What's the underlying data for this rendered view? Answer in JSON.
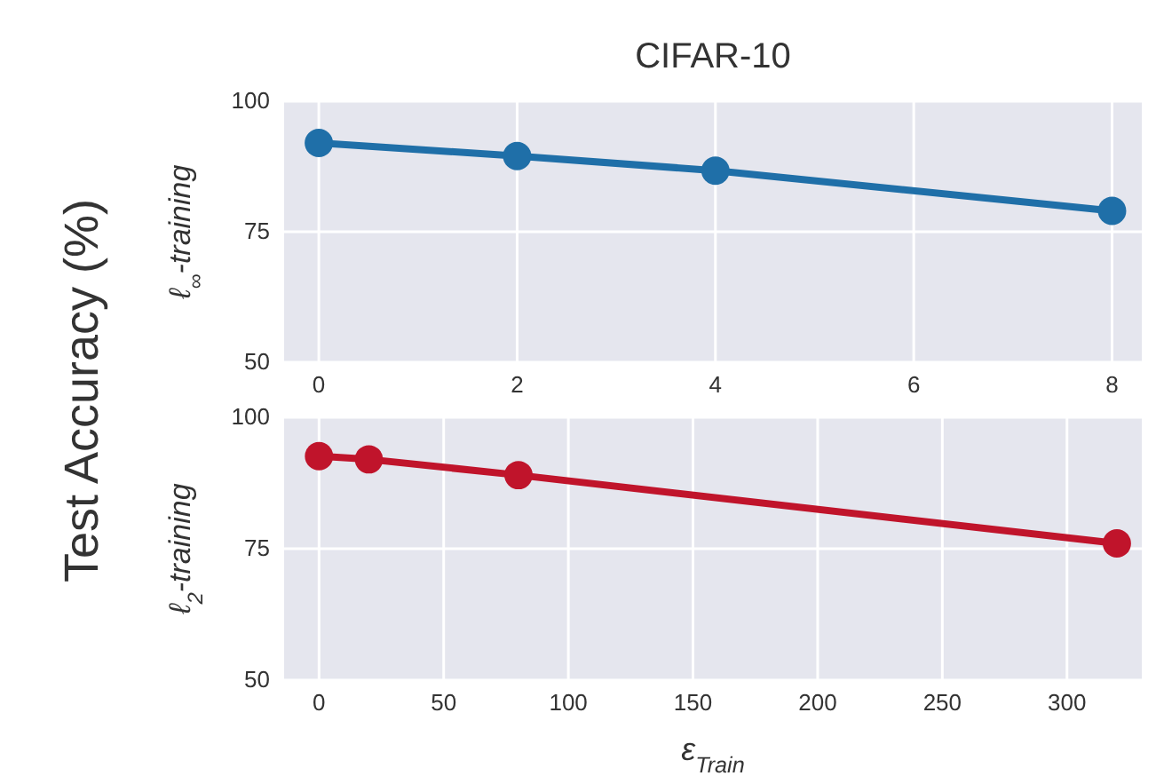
{
  "chart_data": [
    {
      "type": "line",
      "title": "CIFAR-10",
      "ylabel": "ℓ$_{∞}$-training",
      "annotations": [
        "Test Accuracy (%)"
      ],
      "x": [
        0,
        2,
        4,
        8
      ],
      "series": [
        {
          "color": "#1f6fa8",
          "values": [
            92,
            89.5,
            86.7,
            79
          ]
        }
      ],
      "xlim": [
        -0.35,
        8.3
      ],
      "xticks": [
        0,
        2,
        4,
        6,
        8
      ],
      "ylim": [
        50,
        100
      ],
      "yticks": [
        50,
        75,
        100
      ],
      "grid": true,
      "marker": "circle",
      "line_style": "solid"
    },
    {
      "type": "line",
      "ylabel": "ℓ$_{2}$-training",
      "xlabel": "ε$_{Train}$",
      "x": [
        0,
        20,
        80,
        320
      ],
      "series": [
        {
          "color": "#c0142b",
          "values": [
            92.6,
            92,
            89,
            76
          ]
        }
      ],
      "xlim": [
        -14,
        330
      ],
      "xticks": [
        0,
        50,
        100,
        150,
        200,
        250,
        300
      ],
      "ylim": [
        50,
        100
      ],
      "yticks": [
        50,
        75,
        100
      ],
      "grid": true,
      "marker": "circle",
      "line_style": "solid"
    }
  ]
}
